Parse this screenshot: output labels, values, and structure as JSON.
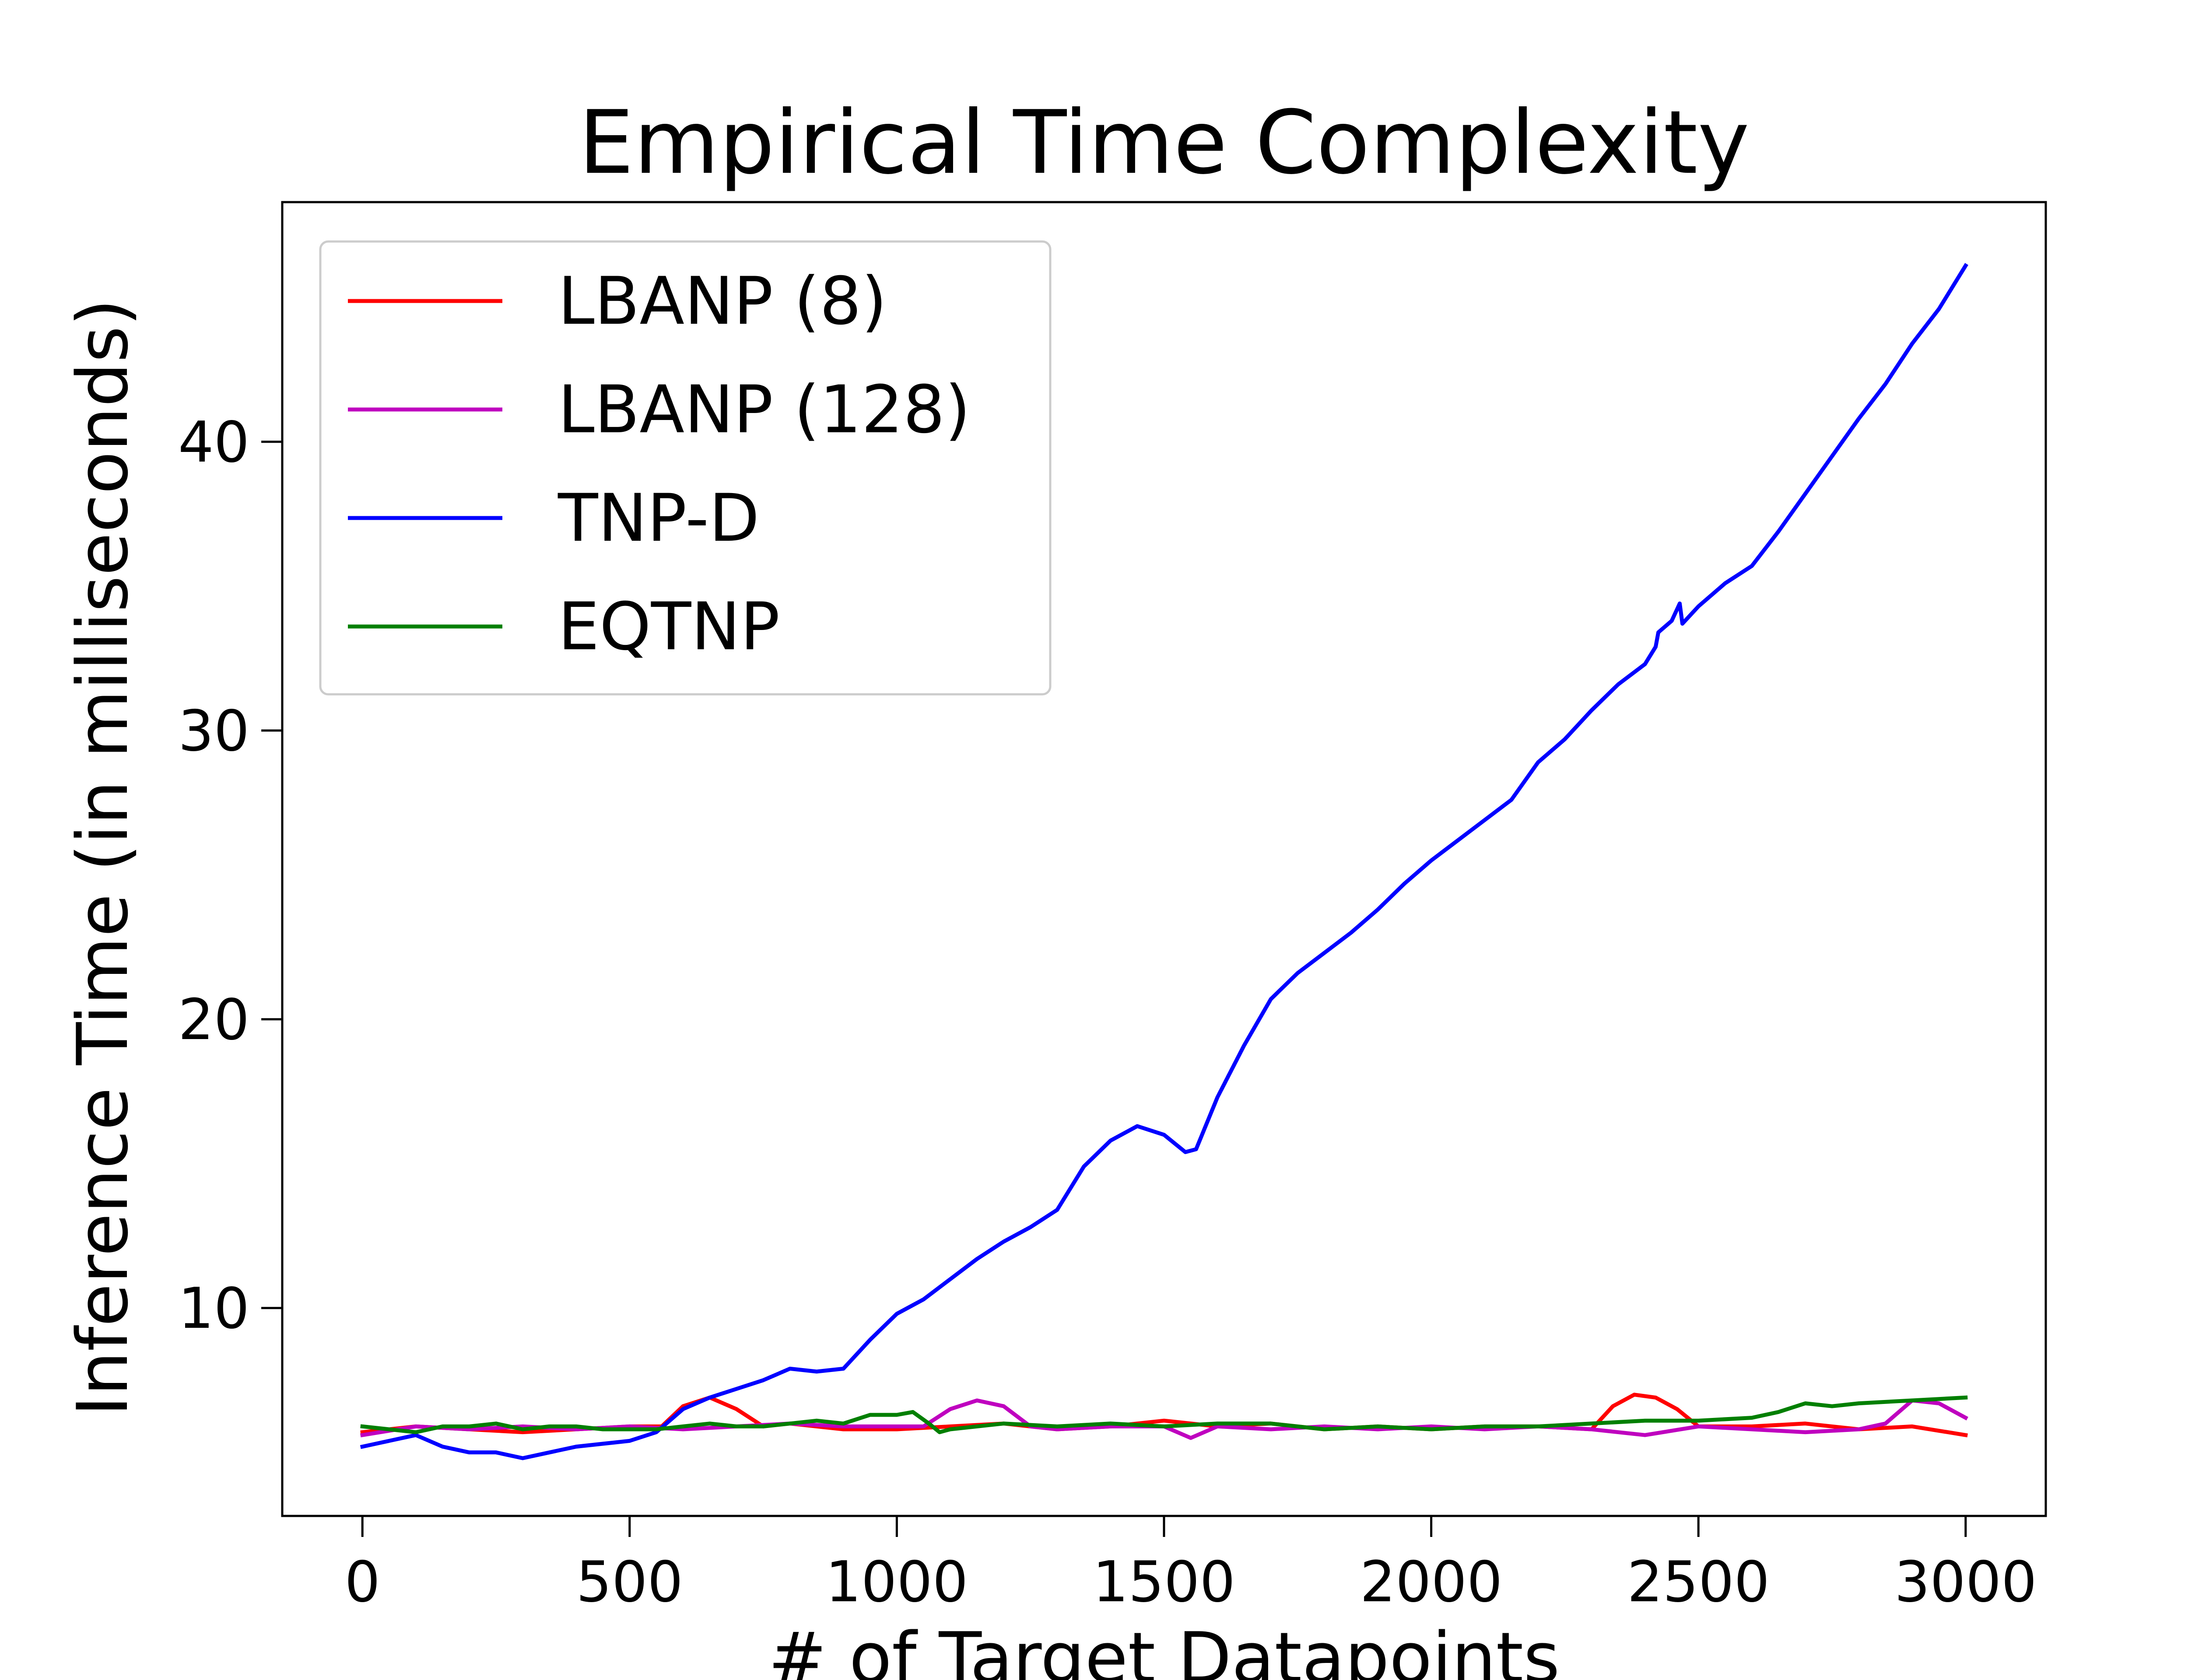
{
  "chart_data": {
    "type": "line",
    "title": "Empirical Time Complexity",
    "xlabel": "# of Target Datapoints",
    "ylabel": "Inference Time (in milliseconds)",
    "xlim": [
      -150,
      3150
    ],
    "ylim": [
      2.8,
      48.3
    ],
    "xticks": [
      0,
      500,
      1000,
      1500,
      2000,
      2500,
      3000
    ],
    "yticks": [
      10,
      20,
      30,
      40
    ],
    "grid": false,
    "legend_position": "top-left",
    "series": [
      {
        "name": "LBANP (8)",
        "color": "#ff0000",
        "x": [
          0,
          100,
          200,
          300,
          400,
          500,
          560,
          600,
          650,
          700,
          750,
          800,
          850,
          900,
          1000,
          1100,
          1200,
          1300,
          1400,
          1500,
          1600,
          1700,
          1800,
          1900,
          2000,
          2100,
          2200,
          2300,
          2340,
          2380,
          2420,
          2460,
          2500,
          2600,
          2700,
          2800,
          2900,
          3000
        ],
        "y": [
          5.7,
          5.9,
          5.8,
          5.7,
          5.8,
          5.9,
          5.9,
          6.6,
          6.9,
          6.5,
          5.9,
          6.0,
          5.9,
          5.8,
          5.8,
          5.9,
          6.0,
          5.8,
          5.9,
          6.1,
          5.9,
          6.0,
          5.8,
          5.9,
          5.8,
          5.9,
          5.9,
          5.8,
          6.6,
          7.0,
          6.9,
          6.5,
          5.9,
          5.9,
          6.0,
          5.8,
          5.9,
          5.6
        ]
      },
      {
        "name": "LBANP (128)",
        "color": "#bf00bf",
        "x": [
          0,
          100,
          200,
          300,
          400,
          500,
          600,
          700,
          800,
          900,
          1000,
          1050,
          1100,
          1150,
          1200,
          1250,
          1300,
          1400,
          1500,
          1550,
          1600,
          1700,
          1800,
          1900,
          2000,
          2100,
          2200,
          2300,
          2400,
          2500,
          2600,
          2700,
          2800,
          2850,
          2900,
          2950,
          3000
        ],
        "y": [
          5.6,
          5.9,
          5.8,
          5.9,
          5.8,
          5.9,
          5.8,
          5.9,
          6.0,
          5.9,
          5.9,
          5.9,
          6.5,
          6.8,
          6.6,
          5.9,
          5.8,
          5.9,
          5.9,
          5.5,
          5.9,
          5.8,
          5.9,
          5.8,
          5.9,
          5.8,
          5.9,
          5.8,
          5.6,
          5.9,
          5.8,
          5.7,
          5.8,
          6.0,
          6.8,
          6.7,
          6.2
        ]
      },
      {
        "name": "TNP-D",
        "color": "#0000ff",
        "x": [
          0,
          50,
          100,
          150,
          200,
          250,
          300,
          350,
          400,
          450,
          500,
          550,
          600,
          650,
          700,
          750,
          800,
          850,
          900,
          950,
          1000,
          1050,
          1100,
          1150,
          1200,
          1250,
          1300,
          1350,
          1400,
          1450,
          1500,
          1540,
          1560,
          1600,
          1650,
          1700,
          1750,
          1800,
          1850,
          1900,
          1950,
          2000,
          2050,
          2100,
          2150,
          2200,
          2250,
          2300,
          2350,
          2400,
          2420,
          2425,
          2450,
          2465,
          2470,
          2500,
          2550,
          2600,
          2650,
          2700,
          2750,
          2800,
          2850,
          2900,
          2950,
          3000
        ],
        "y": [
          5.2,
          5.4,
          5.6,
          5.2,
          5.0,
          5.0,
          4.8,
          5.0,
          5.2,
          5.3,
          5.4,
          5.7,
          6.5,
          6.9,
          7.2,
          7.5,
          7.9,
          7.8,
          7.9,
          8.9,
          9.8,
          10.3,
          11.0,
          11.7,
          12.3,
          12.8,
          13.4,
          14.9,
          15.8,
          16.3,
          16.0,
          15.4,
          15.5,
          17.3,
          19.1,
          20.7,
          21.6,
          22.3,
          23.0,
          23.8,
          24.7,
          25.5,
          26.2,
          26.9,
          27.6,
          28.9,
          29.7,
          30.7,
          31.6,
          32.3,
          32.9,
          33.4,
          33.8,
          34.4,
          33.7,
          34.3,
          35.1,
          35.7,
          36.9,
          38.2,
          39.5,
          40.8,
          42.0,
          43.4,
          44.6,
          46.1
        ]
      },
      {
        "name": "EQTNP",
        "color": "#007f00",
        "x": [
          0,
          50,
          100,
          150,
          200,
          250,
          300,
          350,
          400,
          450,
          500,
          550,
          600,
          650,
          700,
          750,
          800,
          850,
          900,
          950,
          1000,
          1030,
          1060,
          1080,
          1100,
          1150,
          1200,
          1300,
          1400,
          1500,
          1600,
          1700,
          1800,
          1900,
          2000,
          2100,
          2200,
          2300,
          2400,
          2500,
          2600,
          2650,
          2700,
          2750,
          2800,
          2900,
          3000
        ],
        "y": [
          5.9,
          5.8,
          5.7,
          5.9,
          5.9,
          6.0,
          5.8,
          5.9,
          5.9,
          5.8,
          5.8,
          5.8,
          5.9,
          6.0,
          5.9,
          5.9,
          6.0,
          6.1,
          6.0,
          6.3,
          6.3,
          6.4,
          6.0,
          5.7,
          5.8,
          5.9,
          6.0,
          5.9,
          6.0,
          5.9,
          6.0,
          6.0,
          5.8,
          5.9,
          5.8,
          5.9,
          5.9,
          6.0,
          6.1,
          6.1,
          6.2,
          6.4,
          6.7,
          6.6,
          6.7,
          6.8,
          6.9
        ]
      }
    ]
  }
}
